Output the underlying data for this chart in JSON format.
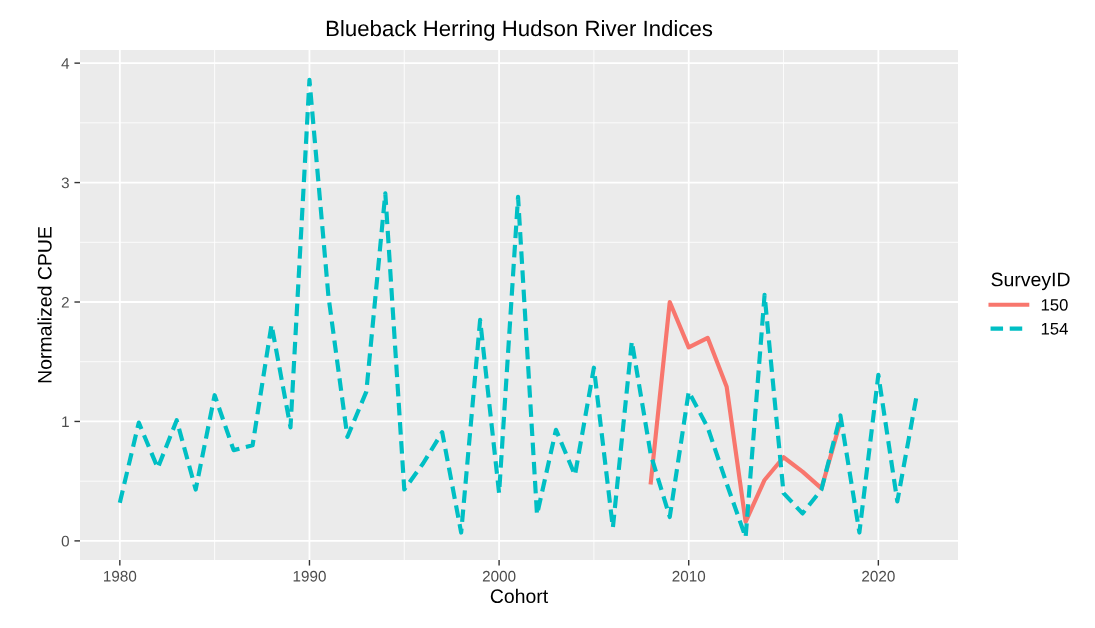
{
  "chart_data": {
    "type": "line",
    "title": "Blueback Herring Hudson River Indices",
    "xlabel": "Cohort",
    "ylabel": "Normalized CPUE",
    "legend_title": "SurveyID",
    "legend": "right",
    "grid": true,
    "xlim": [
      1977.9,
      2024.2
    ],
    "xticks": [
      1980,
      1990,
      2000,
      2010,
      2020
    ],
    "ylim": [
      -0.16,
      4.11
    ],
    "yticks": [
      0,
      1,
      2,
      3,
      4
    ],
    "series": [
      {
        "name": "150",
        "color": "#f8766d",
        "line_style": "solid",
        "x": [
          2008,
          2009,
          2010,
          2011,
          2012,
          2013,
          2014,
          2015,
          2016,
          2017,
          2018
        ],
        "values": [
          0.49,
          2.0,
          1.62,
          1.7,
          1.29,
          0.16,
          0.51,
          0.7,
          0.58,
          0.44,
          1.0
        ]
      },
      {
        "name": "154",
        "color": "#00bfc4",
        "line_style": "dashed",
        "x": [
          1980,
          1981,
          1982,
          1983,
          1984,
          1985,
          1986,
          1987,
          1988,
          1989,
          1990,
          1991,
          1992,
          1993,
          1994,
          1995,
          1996,
          1997,
          1998,
          1999,
          2000,
          2001,
          2002,
          2003,
          2004,
          2005,
          2006,
          2007,
          2008,
          2009,
          2010,
          2011,
          2012,
          2013,
          2014,
          2015,
          2016,
          2017,
          2018,
          2019,
          2020,
          2021,
          2022
        ],
        "values": [
          0.32,
          0.99,
          0.61,
          1.01,
          0.43,
          1.22,
          0.76,
          0.8,
          1.81,
          0.95,
          3.86,
          2.05,
          0.87,
          1.25,
          2.91,
          0.43,
          0.65,
          0.91,
          0.07,
          1.85,
          0.4,
          2.88,
          0.22,
          0.93,
          0.55,
          1.45,
          0.11,
          1.67,
          0.72,
          0.2,
          1.25,
          0.95,
          0.48,
          0.03,
          2.06,
          0.4,
          0.23,
          0.43,
          1.05,
          0.07,
          1.39,
          0.33,
          1.2
        ]
      }
    ]
  }
}
